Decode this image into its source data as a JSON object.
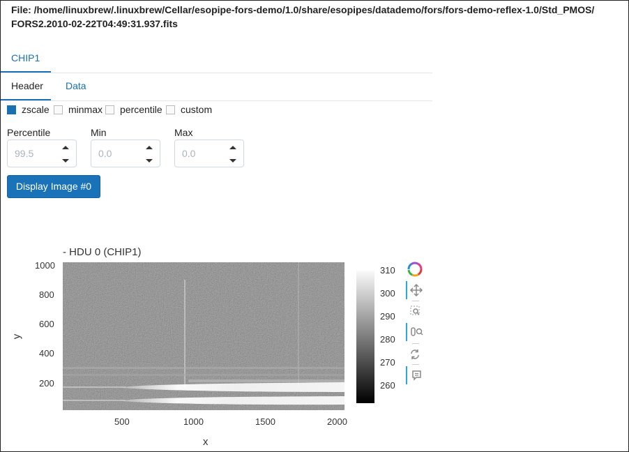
{
  "header": {
    "file_line1": "File: /home/linuxbrew/.linuxbrew/Cellar/esopipe-fors-demo/1.0/share/esopipes/datademo/fors/fors-demo-reflex-1.0/Std_PMOS/",
    "file_line2": "FORS2.2010-02-22T04:49:31.937.fits"
  },
  "tabs": {
    "chip": "CHIP1",
    "header": "Header",
    "data": "Data"
  },
  "scaling": {
    "options": [
      "zscale",
      "minmax",
      "percentile",
      "custom"
    ],
    "selected": "zscale"
  },
  "fields": {
    "percentile_label": "Percentile",
    "percentile_value": "99.5",
    "min_label": "Min",
    "min_value": "0.0",
    "max_label": "Max",
    "max_value": "0.0"
  },
  "display_button": "Display Image #0",
  "plot": {
    "title": "- HDU 0 (CHIP1)",
    "xlabel": "x",
    "ylabel": "y",
    "x_ticks": [
      "500",
      "1000",
      "1500",
      "2000"
    ],
    "y_ticks": [
      "1000",
      "800",
      "600",
      "400",
      "200"
    ],
    "colorbar_ticks": [
      "310",
      "300",
      "290",
      "280",
      "270",
      "260"
    ]
  },
  "toolbar": {
    "icons": [
      "bokeh-logo-icon",
      "pan-icon",
      "box-zoom-icon",
      "wheel-zoom-icon",
      "reset-icon",
      "hover-icon"
    ]
  },
  "chart_data": {
    "type": "heatmap",
    "title": "- HDU 0 (CHIP1)",
    "xlabel": "x",
    "ylabel": "y",
    "xlim": [
      80,
      2050
    ],
    "ylim": [
      5,
      1010
    ],
    "colorbar_range": [
      255,
      312
    ],
    "colormap": "gray",
    "x_ticks": [
      500,
      1000,
      1500,
      2000
    ],
    "y_ticks": [
      200,
      400,
      600,
      800,
      1000
    ],
    "colorbar_ticks": [
      260,
      270,
      280,
      290,
      300,
      310
    ]
  }
}
